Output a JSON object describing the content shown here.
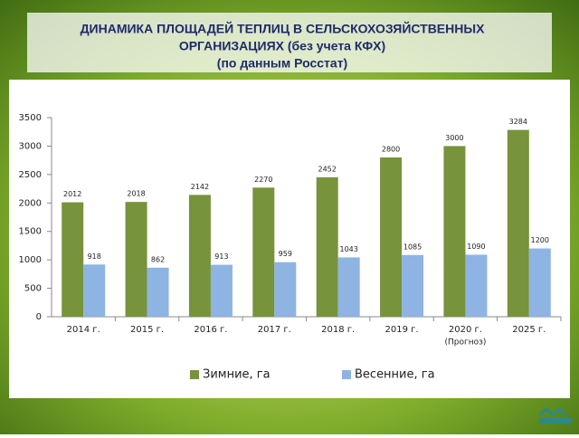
{
  "chart_data": {
    "type": "bar",
    "title": [
      "ДИНАМИКА ПЛОЩАДЕЙ ТЕПЛИЦ В СЕЛЬСКОХОЗЯЙСТВЕННЫХ",
      "ОРГАНИЗАЦИЯХ (без учета КФХ)",
      "(по данным Росстат)"
    ],
    "categories": [
      "2014 г.",
      "2015 г.",
      "2016 г.",
      "2017 г.",
      "2018 г.",
      "2019 г.",
      "2020 г.",
      "2025 г."
    ],
    "note": "(Прогноз)",
    "series": [
      {
        "name": "Зимние, га",
        "color": "#77933c",
        "values": [
          2012,
          2018,
          2142,
          2270,
          2452,
          2800,
          3000,
          3284
        ]
      },
      {
        "name": "Весенние, га",
        "color": "#8db4e2",
        "values": [
          918,
          862,
          913,
          959,
          1043,
          1085,
          1090,
          1200
        ]
      }
    ],
    "ylim": [
      0,
      3500
    ],
    "yticks": [
      0,
      500,
      1000,
      1500,
      2000,
      2500,
      3000,
      3500
    ],
    "grid": false,
    "legend": "bottom"
  }
}
